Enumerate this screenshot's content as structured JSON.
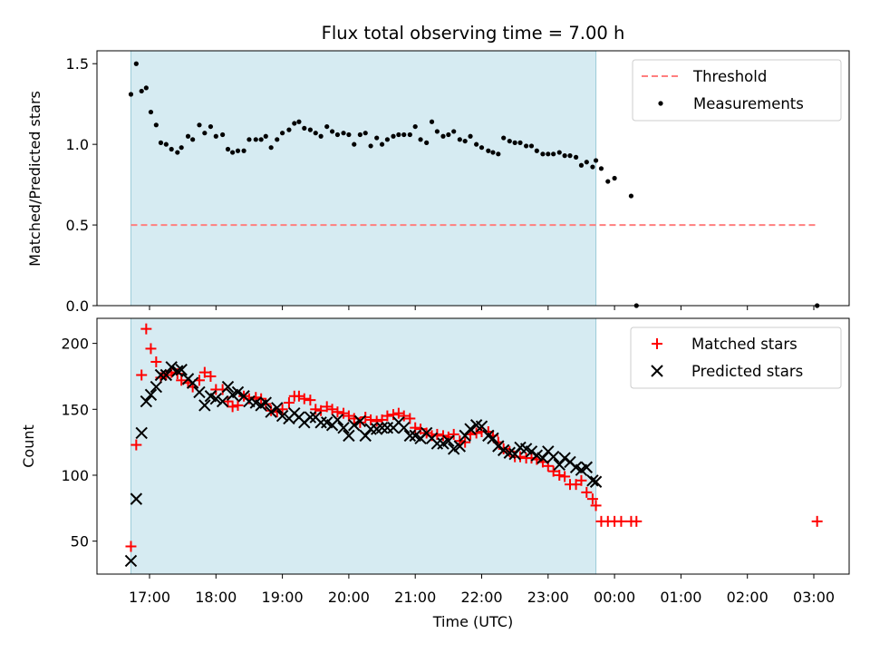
{
  "chart_data": {
    "title": "Flux total observing time = 7.00 h",
    "xlabel": "Time (UTC)",
    "x_tick_labels": [
      "17:00",
      "18:00",
      "19:00",
      "20:00",
      "21:00",
      "22:00",
      "23:00",
      "00:00",
      "01:00",
      "02:00",
      "03:00"
    ],
    "colors": {
      "threshold": "#ff7f7f",
      "measurements": "#000000",
      "matched": "#ff0000",
      "predicted": "#000000",
      "shade": "#add8e6"
    },
    "shaded_interval": {
      "start_h": 16.72,
      "end_h": 23.72
    },
    "panels": [
      {
        "type": "scatter",
        "ylabel": "Matched/Predicted stars",
        "ylim": [
          0,
          1.58
        ],
        "yticks": [
          0.0,
          0.5,
          1.0,
          1.5
        ],
        "y_tick_labels": [
          "0.0",
          "0.5",
          "1.0",
          "1.5"
        ],
        "legend_placement": "top-right",
        "series": [
          {
            "name": "Threshold",
            "style": "dashed-line",
            "x": [
              16.72,
              27.05
            ],
            "values": [
              0.5,
              0.5
            ]
          },
          {
            "name": "Measurements",
            "style": "dot",
            "x": [
              16.72,
              16.8,
              16.88,
              16.95,
              17.02,
              17.1,
              17.17,
              17.25,
              17.33,
              17.42,
              17.48,
              17.58,
              17.65,
              17.75,
              17.83,
              17.92,
              18.0,
              18.1,
              18.18,
              18.25,
              18.33,
              18.42,
              18.5,
              18.6,
              18.68,
              18.75,
              18.83,
              18.92,
              19.0,
              19.1,
              19.18,
              19.25,
              19.33,
              19.42,
              19.5,
              19.58,
              19.67,
              19.75,
              19.83,
              19.92,
              20.0,
              20.08,
              20.17,
              20.25,
              20.33,
              20.42,
              20.5,
              20.58,
              20.67,
              20.75,
              20.83,
              20.92,
              21.0,
              21.08,
              21.17,
              21.25,
              21.33,
              21.42,
              21.5,
              21.58,
              21.67,
              21.75,
              21.83,
              21.92,
              22.0,
              22.1,
              22.17,
              22.25,
              22.33,
              22.42,
              22.5,
              22.58,
              22.67,
              22.75,
              22.83,
              22.92,
              23.0,
              23.08,
              23.17,
              23.25,
              23.33,
              23.42,
              23.5,
              23.58,
              23.67,
              23.72,
              23.8,
              23.9,
              24.0,
              24.25,
              24.33,
              27.05
            ],
            "values": [
              1.31,
              1.5,
              1.33,
              1.35,
              1.2,
              1.12,
              1.01,
              1.0,
              0.97,
              0.95,
              0.98,
              1.05,
              1.03,
              1.12,
              1.07,
              1.11,
              1.05,
              1.06,
              0.97,
              0.95,
              0.96,
              0.96,
              1.03,
              1.03,
              1.03,
              1.05,
              0.98,
              1.03,
              1.07,
              1.09,
              1.13,
              1.14,
              1.1,
              1.09,
              1.07,
              1.05,
              1.11,
              1.08,
              1.06,
              1.07,
              1.06,
              1.0,
              1.06,
              1.07,
              0.99,
              1.04,
              1.0,
              1.03,
              1.05,
              1.06,
              1.06,
              1.06,
              1.11,
              1.03,
              1.01,
              1.14,
              1.08,
              1.05,
              1.06,
              1.08,
              1.03,
              1.02,
              1.05,
              1.0,
              0.98,
              0.96,
              0.95,
              0.94,
              1.04,
              1.02,
              1.01,
              1.01,
              0.99,
              0.99,
              0.96,
              0.94,
              0.94,
              0.94,
              0.95,
              0.93,
              0.93,
              0.92,
              0.87,
              0.89,
              0.86,
              0.9,
              0.85,
              0.77,
              0.79,
              0.68,
              0.0,
              0.0
            ]
          }
        ]
      },
      {
        "type": "scatter",
        "ylabel": "Count",
        "ylim": [
          25,
          219
        ],
        "yticks": [
          50,
          100,
          150,
          200
        ],
        "y_tick_labels": [
          "50",
          "100",
          "150",
          "200"
        ],
        "legend_placement": "top-right",
        "series": [
          {
            "name": "Matched stars",
            "style": "plus",
            "x": [
              16.72,
              16.8,
              16.88,
              16.95,
              17.02,
              17.1,
              17.17,
              17.25,
              17.33,
              17.42,
              17.48,
              17.58,
              17.65,
              17.75,
              17.83,
              17.92,
              18.0,
              18.1,
              18.18,
              18.25,
              18.33,
              18.42,
              18.5,
              18.6,
              18.68,
              18.75,
              18.83,
              18.92,
              19.0,
              19.1,
              19.18,
              19.25,
              19.33,
              19.42,
              19.5,
              19.58,
              19.67,
              19.75,
              19.83,
              19.92,
              20.0,
              20.08,
              20.17,
              20.25,
              20.33,
              20.42,
              20.5,
              20.58,
              20.67,
              20.75,
              20.83,
              20.92,
              21.0,
              21.08,
              21.17,
              21.25,
              21.33,
              21.42,
              21.5,
              21.58,
              21.67,
              21.75,
              21.83,
              21.92,
              22.0,
              22.1,
              22.17,
              22.25,
              22.33,
              22.42,
              22.5,
              22.58,
              22.67,
              22.75,
              22.83,
              22.92,
              23.0,
              23.08,
              23.17,
              23.25,
              23.33,
              23.42,
              23.5,
              23.58,
              23.67,
              23.72,
              23.8,
              23.9,
              24.0,
              24.1,
              24.25,
              24.33,
              27.05
            ],
            "values": [
              46,
              123,
              176,
              211,
              196,
              186,
              174,
              176,
              178,
              177,
              172,
              170,
              167,
              172,
              178,
              175,
              165,
              165,
              156,
              152,
              153,
              160,
              158,
              159,
              158,
              154,
              149,
              148,
              150,
              155,
              160,
              160,
              158,
              157,
              150,
              149,
              152,
              150,
              148,
              147,
              145,
              143,
              140,
              144,
              142,
              141,
              142,
              145,
              146,
              147,
              145,
              143,
              136,
              135,
              132,
              130,
              131,
              130,
              129,
              131,
              126,
              125,
              131,
              132,
              133,
              133,
              130,
              125,
              120,
              118,
              114,
              114,
              113,
              113,
              112,
              110,
              107,
              103,
              100,
              99,
              93,
              93,
              96,
              87,
              82,
              77,
              65,
              65,
              65,
              65,
              65,
              65,
              65
            ]
          },
          {
            "name": "Predicted stars",
            "style": "cross",
            "x": [
              16.72,
              16.8,
              16.88,
              16.95,
              17.02,
              17.1,
              17.17,
              17.25,
              17.33,
              17.42,
              17.48,
              17.58,
              17.65,
              17.75,
              17.83,
              17.92,
              18.0,
              18.1,
              18.18,
              18.25,
              18.33,
              18.42,
              18.5,
              18.6,
              18.68,
              18.75,
              18.83,
              18.92,
              19.0,
              19.1,
              19.18,
              19.25,
              19.33,
              19.42,
              19.5,
              19.58,
              19.67,
              19.75,
              19.83,
              19.92,
              20.0,
              20.08,
              20.17,
              20.25,
              20.33,
              20.42,
              20.5,
              20.58,
              20.67,
              20.75,
              20.83,
              20.92,
              21.0,
              21.08,
              21.17,
              21.25,
              21.33,
              21.42,
              21.5,
              21.58,
              21.67,
              21.75,
              21.83,
              21.92,
              22.0,
              22.1,
              22.17,
              22.25,
              22.33,
              22.42,
              22.5,
              22.58,
              22.67,
              22.75,
              22.83,
              22.92,
              23.0,
              23.08,
              23.17,
              23.25,
              23.33,
              23.42,
              23.5,
              23.58,
              23.67,
              23.72
            ],
            "values": [
              35,
              82,
              132,
              156,
              161,
              167,
              176,
              176,
              182,
              179,
              180,
              173,
              170,
              163,
              153,
              160,
              158,
              156,
              167,
              161,
              163,
              160,
              156,
              155,
              153,
              155,
              148,
              151,
              145,
              143,
              147,
              144,
              140,
              144,
              144,
              140,
              140,
              138,
              142,
              136,
              130,
              138,
              141,
              130,
              135,
              135,
              136,
              136,
              136,
              140,
              136,
              130,
              130,
              128,
              132,
              128,
              124,
              124,
              126,
              120,
              122,
              130,
              135,
              138,
              137,
              130,
              128,
              122,
              119,
              117,
              116,
              121,
              120,
              118,
              115,
              113,
              118,
              114,
              108,
              113,
              110,
              106,
              104,
              106,
              96,
              95
            ]
          }
        ]
      }
    ]
  }
}
